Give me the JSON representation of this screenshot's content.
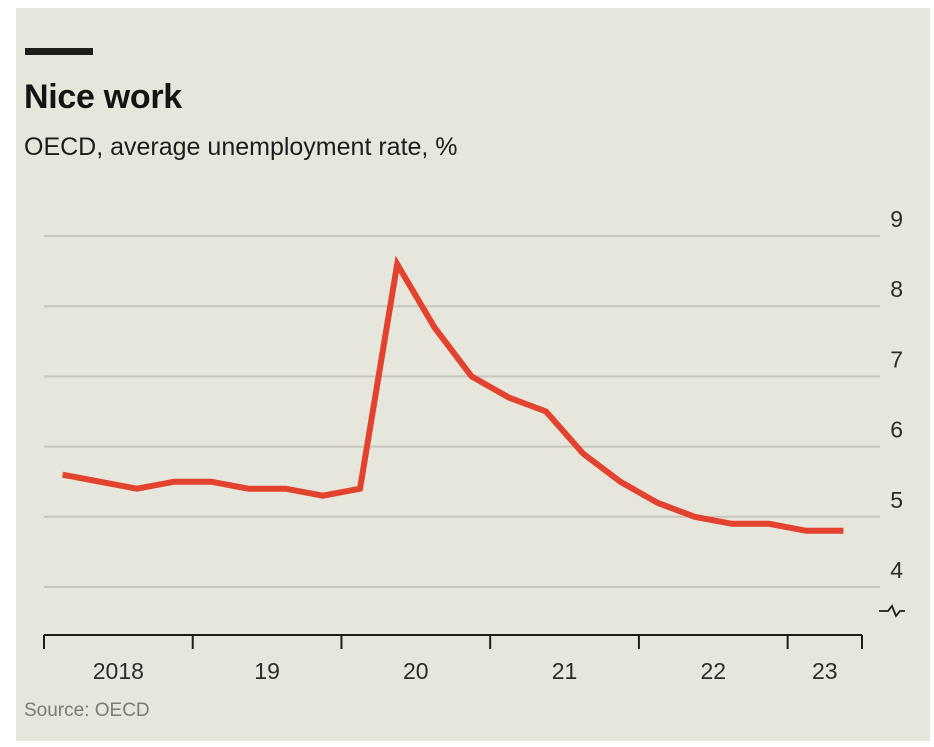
{
  "chart_data": {
    "type": "line",
    "title": "Nice work",
    "subtitle": "OECD, average unemployment rate, %",
    "source": "Source: OECD",
    "xlabel": "",
    "ylabel": "",
    "ylim": [
      3.65,
      9
    ],
    "yticks": [
      9,
      8,
      7,
      6,
      5,
      4
    ],
    "y_axis_side": "right",
    "y_axis_break": true,
    "xlim": [
      2018.0,
      2023.5
    ],
    "year_ticks": [
      2018,
      2019,
      2020,
      2021,
      2022,
      2023
    ],
    "year_labels": [
      "2018",
      "19",
      "20",
      "21",
      "22",
      "23"
    ],
    "grid": true,
    "colors": {
      "line": "#e3422e",
      "grid": "#c8c6bc",
      "axis": "#1d1d1b",
      "background": "#e7e6dc",
      "accent_bar": "#1d1d1b"
    },
    "series": [
      {
        "x": [
          2018.125,
          2018.375,
          2018.625,
          2018.875,
          2019.125,
          2019.375,
          2019.625,
          2019.875,
          2020.125,
          2020.375,
          2020.625,
          2020.875,
          2021.125,
          2021.375,
          2021.625,
          2021.875,
          2022.125,
          2022.375,
          2022.625,
          2022.875,
          2023.125,
          2023.375
        ],
        "values": [
          5.6,
          5.5,
          5.4,
          5.5,
          5.5,
          5.4,
          5.4,
          5.3,
          5.4,
          8.6,
          7.7,
          7.0,
          6.7,
          6.5,
          5.9,
          5.5,
          5.2,
          5.0,
          4.9,
          4.9,
          4.8,
          4.8
        ]
      }
    ]
  }
}
